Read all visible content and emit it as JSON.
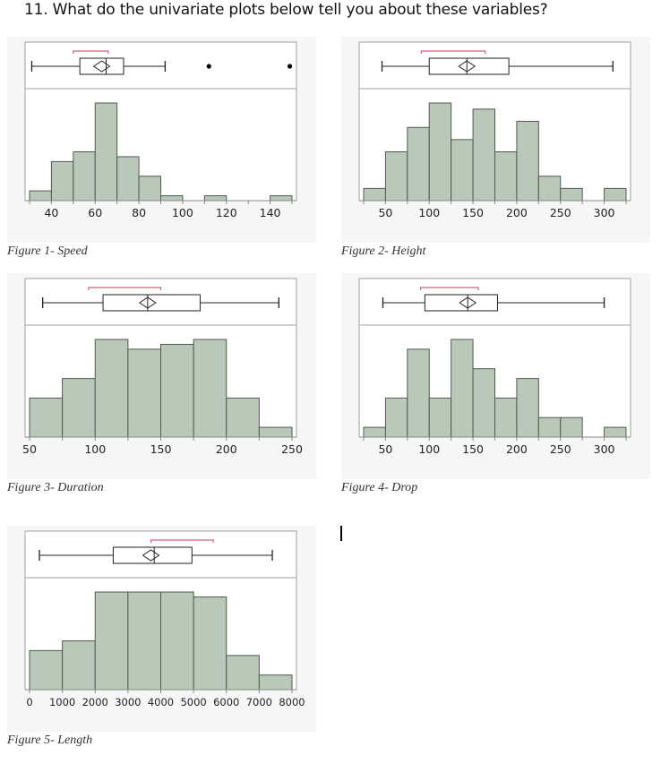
{
  "question": "11. What do the univariate plots below tell you about these variables?",
  "colors": {
    "bar_fill": "#b9c8b9",
    "bar_stroke": "#4f5b4f",
    "panel_bg": "#f6f6f6",
    "frame": "#a0a0a0",
    "mean_bracket": "#d0607a",
    "box_stroke": "#222222"
  },
  "figures": [
    {
      "caption": "Figure 1- Speed"
    },
    {
      "caption": "Figure 2- Height"
    },
    {
      "caption": "Figure 3- Duration"
    },
    {
      "caption": "Figure 4- Drop"
    },
    {
      "caption": "Figure 5- Length"
    }
  ],
  "chart_data": [
    {
      "type": "bar",
      "title": "Figure 1- Speed",
      "subtype": "histogram_with_boxplot",
      "bin_edges": [
        30,
        40,
        50,
        60,
        70,
        80,
        90,
        100,
        110,
        120,
        130,
        140,
        150
      ],
      "values": [
        2,
        8,
        10,
        20,
        9,
        5,
        1,
        0,
        1,
        0,
        0,
        1
      ],
      "xticks": [
        40,
        60,
        80,
        100,
        120,
        140
      ],
      "xlim": [
        30,
        150
      ],
      "boxplot": {
        "whisker_low": 31,
        "q1": 53,
        "median": 65,
        "q3": 73,
        "whisker_high": 92,
        "mean": 63,
        "outliers": [
          112,
          149
        ],
        "shortest_half": [
          50,
          66
        ]
      },
      "xlabel": "",
      "ylabel": ""
    },
    {
      "type": "bar",
      "title": "Figure 2- Height",
      "subtype": "histogram_with_boxplot",
      "bin_edges": [
        25,
        50,
        75,
        100,
        125,
        150,
        175,
        200,
        225,
        250,
        275,
        300,
        325
      ],
      "values": [
        1,
        4,
        6,
        8,
        5,
        7.5,
        4,
        6.5,
        2,
        1,
        0,
        1
      ],
      "xticks": [
        50,
        100,
        150,
        200,
        250,
        300
      ],
      "xlim": [
        25,
        325
      ],
      "boxplot": {
        "whisker_low": 46,
        "q1": 100,
        "median": 143,
        "q3": 191,
        "whisker_high": 310,
        "mean": 143,
        "outliers": [],
        "shortest_half": [
          91,
          164
        ]
      },
      "xlabel": "",
      "ylabel": ""
    },
    {
      "type": "bar",
      "title": "Figure 3- Duration",
      "subtype": "histogram_with_boxplot",
      "bin_edges": [
        50,
        75,
        100,
        125,
        150,
        175,
        200,
        225,
        250
      ],
      "values": [
        4,
        6,
        10,
        9,
        9.5,
        10,
        4,
        1
      ],
      "xticks": [
        50,
        100,
        150,
        200,
        250
      ],
      "xlim": [
        50,
        250
      ],
      "boxplot": {
        "whisker_low": 60,
        "q1": 106,
        "median": 140,
        "q3": 180,
        "whisker_high": 240,
        "mean": 140,
        "outliers": [],
        "shortest_half": [
          95,
          150
        ]
      },
      "xlabel": "",
      "ylabel": ""
    },
    {
      "type": "bar",
      "title": "Figure 4- Drop",
      "subtype": "histogram_with_boxplot",
      "bin_edges": [
        25,
        50,
        75,
        100,
        125,
        150,
        175,
        200,
        225,
        250,
        275,
        300,
        325
      ],
      "values": [
        1,
        4,
        9,
        4,
        10,
        7,
        4,
        6,
        2,
        2,
        0,
        1
      ],
      "xticks": [
        50,
        100,
        150,
        200,
        250,
        300
      ],
      "xlim": [
        25,
        325
      ],
      "boxplot": {
        "whisker_low": 47,
        "q1": 95,
        "median": 144,
        "q3": 178,
        "whisker_high": 300,
        "mean": 144,
        "outliers": [],
        "shortest_half": [
          90,
          156
        ]
      },
      "xlabel": "",
      "ylabel": ""
    },
    {
      "type": "bar",
      "title": "Figure 5- Length",
      "subtype": "histogram_with_boxplot",
      "bin_edges": [
        0,
        1000,
        2000,
        3000,
        4000,
        5000,
        6000,
        7000,
        8000
      ],
      "values": [
        4,
        5,
        10,
        10,
        10,
        9.5,
        3.5,
        1.5
      ],
      "xticks": [
        0,
        1000,
        2000,
        3000,
        4000,
        5000,
        6000,
        7000,
        8000
      ],
      "xlim": [
        0,
        8000
      ],
      "boxplot": {
        "whisker_low": 300,
        "q1": 2550,
        "median": 3800,
        "q3": 4950,
        "whisker_high": 7400,
        "mean": 3700,
        "outliers": [],
        "shortest_half": [
          3700,
          5600
        ]
      },
      "xlabel": "",
      "ylabel": ""
    }
  ]
}
